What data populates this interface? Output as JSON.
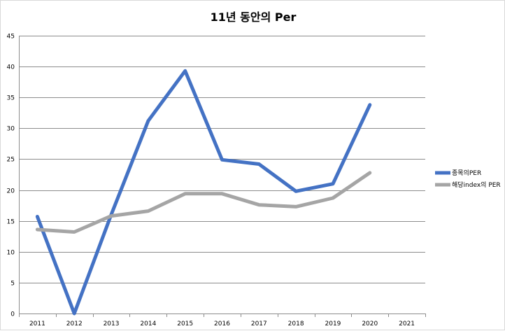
{
  "chart_data": {
    "type": "line",
    "title": "11년 동안의 Per",
    "xlabel": "",
    "ylabel": "",
    "x": [
      "2011",
      "2012",
      "2013",
      "2014",
      "2015",
      "2016",
      "2017",
      "2018",
      "2019",
      "2020",
      "2021"
    ],
    "ylim": [
      0,
      45
    ],
    "yticks": [
      0,
      5,
      10,
      15,
      20,
      25,
      30,
      35,
      40,
      45
    ],
    "grid": true,
    "legend_position": "right",
    "series": [
      {
        "name": "종목의PER",
        "color": "#4472c4",
        "values": [
          15.7,
          0,
          16.0,
          31.2,
          39.3,
          24.9,
          24.2,
          19.8,
          21.0,
          33.8,
          null
        ]
      },
      {
        "name": "해당index의 PER",
        "color": "#a5a5a5",
        "values": [
          13.6,
          13.2,
          15.8,
          16.6,
          19.4,
          19.4,
          17.6,
          17.3,
          18.7,
          22.8,
          null
        ]
      }
    ]
  }
}
